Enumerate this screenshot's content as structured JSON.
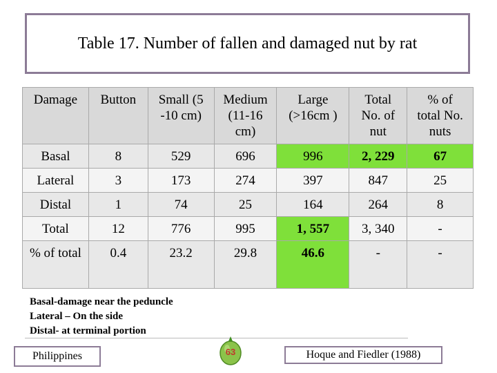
{
  "title": "Table 17. Number of fallen and damaged nut by rat",
  "table": {
    "headers": [
      [
        "Damage"
      ],
      [
        "Button"
      ],
      [
        "Small (5",
        "-10 cm)"
      ],
      [
        "Medium",
        "(11-16",
        "cm)"
      ],
      [
        "Large",
        "(>16cm )"
      ],
      [
        "Total",
        "No. of",
        "nut"
      ],
      [
        "% of",
        "total No.",
        "nuts"
      ]
    ],
    "rows": [
      {
        "cells": [
          "Basal",
          "8",
          "529",
          "696",
          "996",
          "2, 229",
          "67"
        ]
      },
      {
        "cells": [
          "Lateral",
          "3",
          "173",
          "274",
          "397",
          "847",
          "25"
        ]
      },
      {
        "cells": [
          "Distal",
          "1",
          "74",
          "25",
          "164",
          "264",
          "8"
        ]
      },
      {
        "cells": [
          "Total",
          "12",
          "776",
          "995",
          "1, 557",
          "3, 340",
          "-"
        ]
      },
      {
        "cells": [
          "% of total",
          "0.4",
          "23.2",
          "29.8",
          "46.6",
          "-",
          "-"
        ]
      }
    ],
    "highlight_color": "#7fe03a"
  },
  "notes": [
    "Basal-damage near the peduncle",
    "Lateral – On the side",
    "Distal- at terminal portion"
  ],
  "footer": {
    "left_label": "Philippines",
    "page_number": "63",
    "citation": "Hoque and Fiedler (1988)"
  }
}
